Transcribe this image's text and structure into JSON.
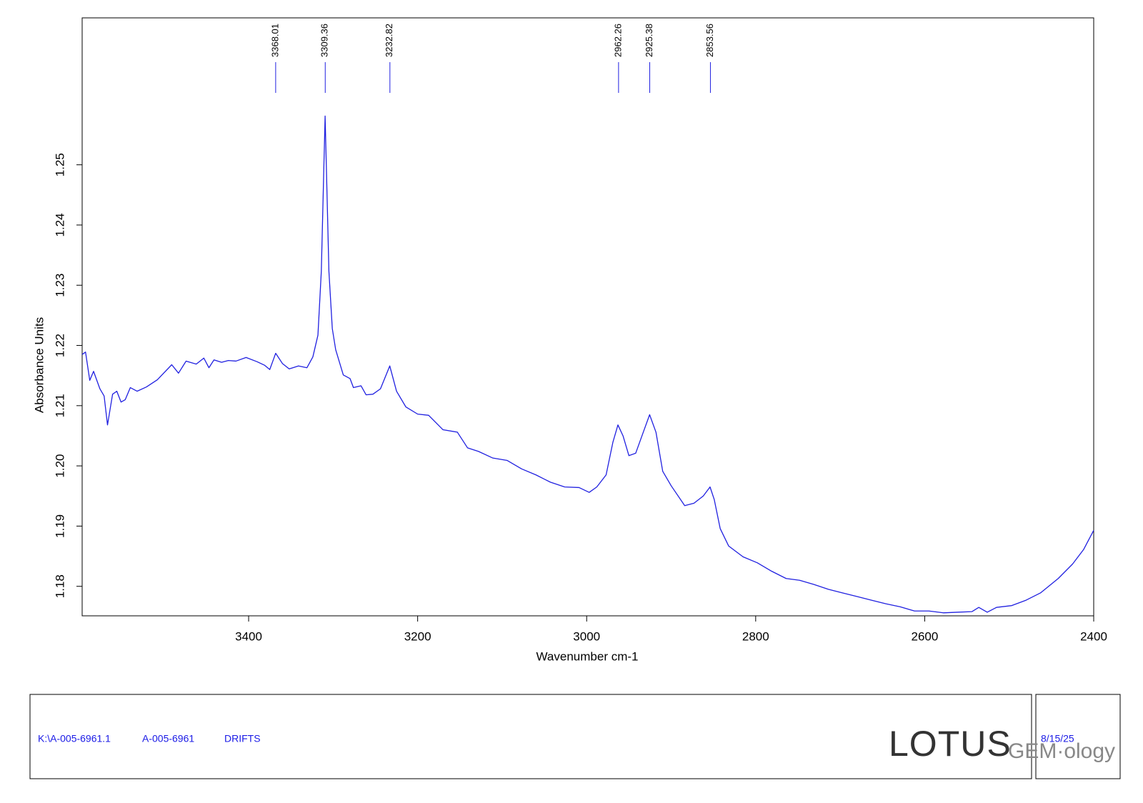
{
  "chart_data": {
    "type": "line",
    "xlabel": "Wavenumber cm-1",
    "ylabel": "Absorbance Units",
    "xlim": [
      3597,
      2400
    ],
    "ylim": [
      1.1751,
      1.2744
    ],
    "xticks": [
      3400,
      3200,
      3000,
      2800,
      2600,
      2400
    ],
    "yticks": [
      1.18,
      1.19,
      {
        "value": 1.2,
        "label": "1.20"
      },
      1.21,
      1.22,
      1.23,
      1.24,
      1.25
    ],
    "color": "#2020e0",
    "peaks": [
      3368.01,
      3309.36,
      3232.82,
      2962.26,
      2925.38,
      2853.56
    ],
    "x": [
      3597,
      3593,
      3588,
      3583.5,
      3576,
      3571,
      3567,
      3561,
      3556,
      3551,
      3546,
      3540,
      3532,
      3521,
      3508,
      3491,
      3483,
      3474,
      3462,
      3453,
      3447,
      3441,
      3432,
      3424,
      3415,
      3403,
      3390,
      3381,
      3375,
      3368,
      3360,
      3352,
      3341,
      3331,
      3324,
      3318,
      3314,
      3309.5,
      3305,
      3301,
      3297,
      3288,
      3280,
      3276,
      3267,
      3261,
      3253,
      3244,
      3233,
      3225,
      3214,
      3200,
      3187,
      3170,
      3153,
      3141,
      3128,
      3111,
      3094,
      3077,
      3060,
      3043,
      3026,
      3009,
      2997,
      2988,
      2977,
      2969,
      2963,
      2957,
      2950,
      2942,
      2933,
      2925.5,
      2918,
      2910,
      2900,
      2884,
      2873,
      2862,
      2854,
      2849,
      2842,
      2832,
      2815,
      2798,
      2781,
      2764,
      2748,
      2731,
      2714,
      2697,
      2680,
      2663,
      2646,
      2629,
      2612,
      2595,
      2578,
      2561,
      2544,
      2536,
      2526,
      2515,
      2497,
      2480,
      2463,
      2442,
      2425,
      2412,
      2400
    ],
    "values": [
      1.2185,
      1.2189,
      1.2142,
      1.2157,
      1.2128,
      1.2116,
      1.2068,
      1.2119,
      1.2124,
      1.2106,
      1.211,
      1.213,
      1.2124,
      1.2131,
      1.2143,
      1.2168,
      1.2154,
      1.2174,
      1.2169,
      1.2179,
      1.2163,
      1.2176,
      1.2172,
      1.2175,
      1.2174,
      1.218,
      1.2173,
      1.2167,
      1.216,
      1.2187,
      1.217,
      1.2161,
      1.2166,
      1.2163,
      1.2181,
      1.2217,
      1.2323,
      1.2581,
      1.2323,
      1.2228,
      1.2193,
      1.2151,
      1.2145,
      1.213,
      1.2133,
      1.2118,
      1.2119,
      1.2128,
      1.2166,
      1.2124,
      1.2098,
      1.2086,
      1.2084,
      1.206,
      1.2056,
      1.203,
      1.2024,
      1.2013,
      1.2009,
      1.1995,
      1.1985,
      1.1973,
      1.1965,
      1.1964,
      1.1956,
      1.1965,
      1.1985,
      1.2039,
      1.2068,
      1.205,
      1.2017,
      1.2021,
      1.2056,
      1.2085,
      1.2056,
      1.1991,
      1.1967,
      1.1934,
      1.1938,
      1.195,
      1.1965,
      1.1944,
      1.1896,
      1.1867,
      1.1849,
      1.1839,
      1.1825,
      1.1813,
      1.181,
      1.1803,
      1.1795,
      1.1789,
      1.1783,
      1.1777,
      1.1771,
      1.1766,
      1.1759,
      1.1759,
      1.1756,
      1.1757,
      1.1758,
      1.1765,
      1.1757,
      1.1765,
      1.1768,
      1.1777,
      1.1789,
      1.1813,
      1.1837,
      1.1861,
      1.1893
    ]
  },
  "footer": {
    "file": "K:\\A-005-6961.1",
    "sample": "A-005-6961",
    "method": "DRIFTS",
    "logo_main": "LOTUS",
    "logo_sub": "GEM·ology",
    "date": "8/15/25"
  }
}
